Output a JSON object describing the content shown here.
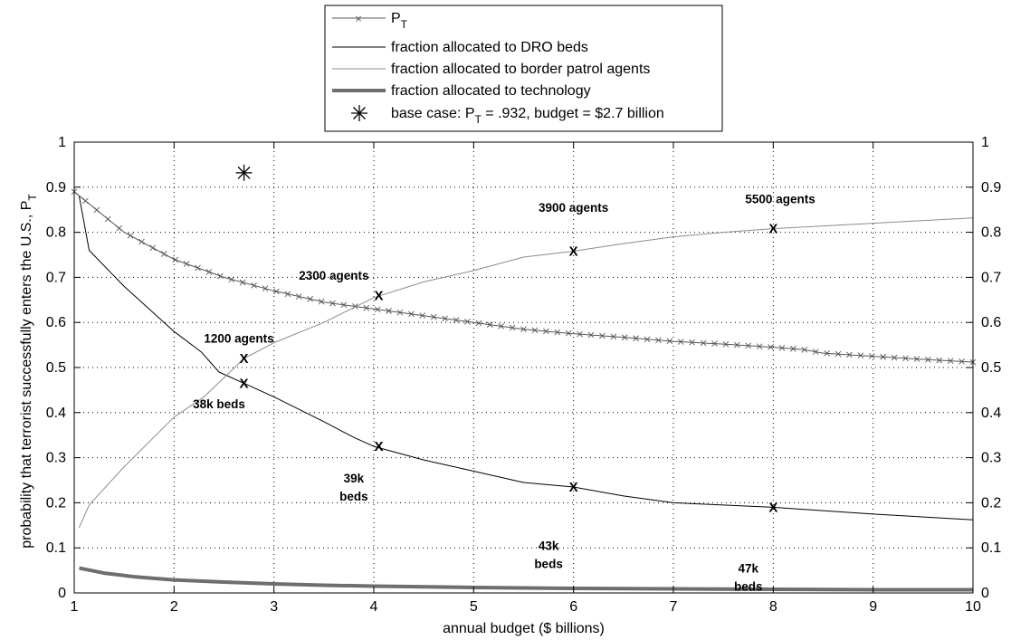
{
  "chart_data": {
    "type": "line",
    "xlabel": "annual budget ($ billions)",
    "ylabel": "probability that terrorist successfully enters the U.S., P",
    "ylabel_sub": "T",
    "xlim": [
      1,
      10
    ],
    "ylim": [
      0,
      1
    ],
    "ylim_right": [
      0,
      1
    ],
    "xticks": [
      "1",
      "2",
      "3",
      "4",
      "5",
      "6",
      "7",
      "8",
      "9",
      "10"
    ],
    "yticks": [
      "0",
      "0.1",
      "0.2",
      "0.3",
      "0.4",
      "0.5",
      "0.6",
      "0.7",
      "0.8",
      "0.9",
      "1"
    ],
    "grid": "dotted",
    "legend_position": "above-plot",
    "series": [
      {
        "name": "P",
        "name_sub": "T",
        "style": "line-with-x-markers",
        "color": "#555555",
        "x": [
          1.0,
          1.5,
          2.0,
          2.5,
          3.0,
          3.5,
          4.0,
          4.5,
          5.0,
          5.5,
          6.0,
          6.5,
          7.0,
          7.5,
          8.0,
          8.3,
          8.5,
          9.0,
          9.5,
          10.0
        ],
        "y": [
          0.89,
          0.8,
          0.74,
          0.7,
          0.67,
          0.645,
          0.63,
          0.615,
          0.6,
          0.585,
          0.575,
          0.567,
          0.558,
          0.552,
          0.545,
          0.54,
          0.532,
          0.525,
          0.518,
          0.512
        ]
      },
      {
        "name": "fraction allocated to DRO beds",
        "color": "#000000",
        "x": [
          1.05,
          1.15,
          1.5,
          2.0,
          2.27,
          2.45,
          2.7,
          3.0,
          3.5,
          3.8,
          4.0,
          4.5,
          5.0,
          5.5,
          6.0,
          6.5,
          7.0,
          7.5,
          8.0,
          9.0,
          10.0
        ],
        "y": [
          0.88,
          0.76,
          0.68,
          0.58,
          0.535,
          0.49,
          0.465,
          0.435,
          0.38,
          0.345,
          0.325,
          0.295,
          0.27,
          0.245,
          0.235,
          0.215,
          0.2,
          0.195,
          0.19,
          0.175,
          0.162
        ]
      },
      {
        "name": "fraction allocated to border patrol agents",
        "color": "#8c8c8c",
        "x": [
          1.05,
          1.15,
          1.5,
          2.0,
          2.3,
          2.7,
          3.0,
          3.5,
          4.0,
          4.5,
          5.0,
          5.5,
          6.0,
          6.5,
          7.0,
          7.5,
          8.0,
          9.0,
          10.0
        ],
        "y": [
          0.145,
          0.195,
          0.28,
          0.39,
          0.435,
          0.52,
          0.555,
          0.6,
          0.655,
          0.69,
          0.715,
          0.745,
          0.758,
          0.775,
          0.79,
          0.8,
          0.808,
          0.82,
          0.832
        ]
      },
      {
        "name": "fraction allocated to technology",
        "color": "#6e6e6e",
        "style": "thick",
        "x": [
          1.05,
          1.3,
          1.6,
          2.0,
          2.5,
          3.0,
          3.5,
          4.0,
          5.0,
          6.0,
          7.0,
          8.0,
          9.0,
          10.0
        ],
        "y": [
          0.055,
          0.044,
          0.036,
          0.029,
          0.024,
          0.02,
          0.017,
          0.015,
          0.012,
          0.01,
          0.009,
          0.008,
          0.007,
          0.007
        ]
      }
    ],
    "base_case": {
      "legend_label": "base case: P",
      "legend_label_sub": "T",
      "legend_label_rest": " = .932, budget = $2.7 billion",
      "x": 2.7,
      "y": 0.932
    },
    "point_markers": [
      {
        "label": "X",
        "x": 2.7,
        "y": 0.52
      },
      {
        "label": "X",
        "x": 2.7,
        "y": 0.465
      },
      {
        "label": "X",
        "x": 4.05,
        "y": 0.66
      },
      {
        "label": "X",
        "x": 4.05,
        "y": 0.325
      },
      {
        "label": "X",
        "x": 6.0,
        "y": 0.758
      },
      {
        "label": "X",
        "x": 6.0,
        "y": 0.235
      },
      {
        "label": "X",
        "x": 8.0,
        "y": 0.808
      },
      {
        "label": "X",
        "x": 8.0,
        "y": 0.19
      }
    ],
    "annotations": [
      {
        "text": "1200 agents",
        "x": 2.65,
        "y": 0.565
      },
      {
        "text": "38k beds",
        "x": 2.45,
        "y": 0.42
      },
      {
        "text": "2300 agents",
        "x": 3.6,
        "y": 0.705
      },
      {
        "text": "39k",
        "x": 3.8,
        "y": 0.255
      },
      {
        "text": "beds",
        "x": 3.8,
        "y": 0.215
      },
      {
        "text": "3900 agents",
        "x": 6.0,
        "y": 0.855
      },
      {
        "text": "43k",
        "x": 5.75,
        "y": 0.105
      },
      {
        "text": "beds",
        "x": 5.75,
        "y": 0.065
      },
      {
        "text": "5500 agents",
        "x": 8.07,
        "y": 0.875
      },
      {
        "text": "47k",
        "x": 7.75,
        "y": 0.055
      },
      {
        "text": "beds",
        "x": 7.75,
        "y": 0.015
      }
    ]
  }
}
